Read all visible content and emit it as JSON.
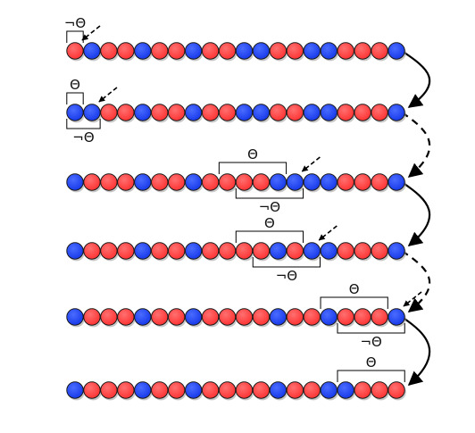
{
  "diagram": {
    "colors": {
      "red": "#ff3a3a",
      "blue": "#1a3df0",
      "outline": "#1b1b1b",
      "line": "#000000",
      "shadow": "#9a9a9a"
    },
    "labels": {
      "theta": "Θ",
      "not_theta": "¬Θ"
    },
    "rows": [
      {
        "balls": "RBRRBRRBRRBBRRBBRRRB",
        "brackets": [
          {
            "label": "not_theta",
            "side": "above",
            "from": 0,
            "to": 0
          }
        ],
        "pointer_at": 0
      },
      {
        "balls": "BBRRBRRBRRBBRRBBRRRB",
        "brackets": [
          {
            "label": "theta",
            "side": "above",
            "from": 0,
            "to": 0
          },
          {
            "label": "not_theta",
            "side": "below",
            "from": 0,
            "to": 1
          }
        ],
        "pointer_at": 1
      },
      {
        "balls": "BRRRBRRBRRRRBBBBRRRB",
        "brackets": [
          {
            "label": "theta",
            "side": "above",
            "from": 9,
            "to": 12
          },
          {
            "label": "not_theta",
            "side": "below",
            "from": 10,
            "to": 13
          }
        ],
        "pointer_at": 13
      },
      {
        "balls": "BRRRBRRBRRRRBRBBRRRB",
        "brackets": [
          {
            "label": "theta",
            "side": "above",
            "from": 10,
            "to": 13
          },
          {
            "label": "not_theta",
            "side": "below",
            "from": 11,
            "to": 14
          }
        ],
        "pointer_at": 14
      },
      {
        "balls": "BRRRBRRBRRRRBRRBRRRB",
        "brackets": [
          {
            "label": "theta",
            "side": "above",
            "from": 15,
            "to": 18
          },
          {
            "label": "not_theta",
            "side": "below",
            "from": 16,
            "to": 19
          }
        ],
        "pointer_at": 19
      },
      {
        "balls": "BRRRBRRBRRRRBRRBBRRR",
        "brackets": [
          {
            "label": "theta",
            "side": "above",
            "from": 16,
            "to": 19
          }
        ],
        "pointer_at": null
      }
    ],
    "transitions": [
      "solid",
      "dashed",
      "solid",
      "dashed",
      "solid"
    ]
  }
}
